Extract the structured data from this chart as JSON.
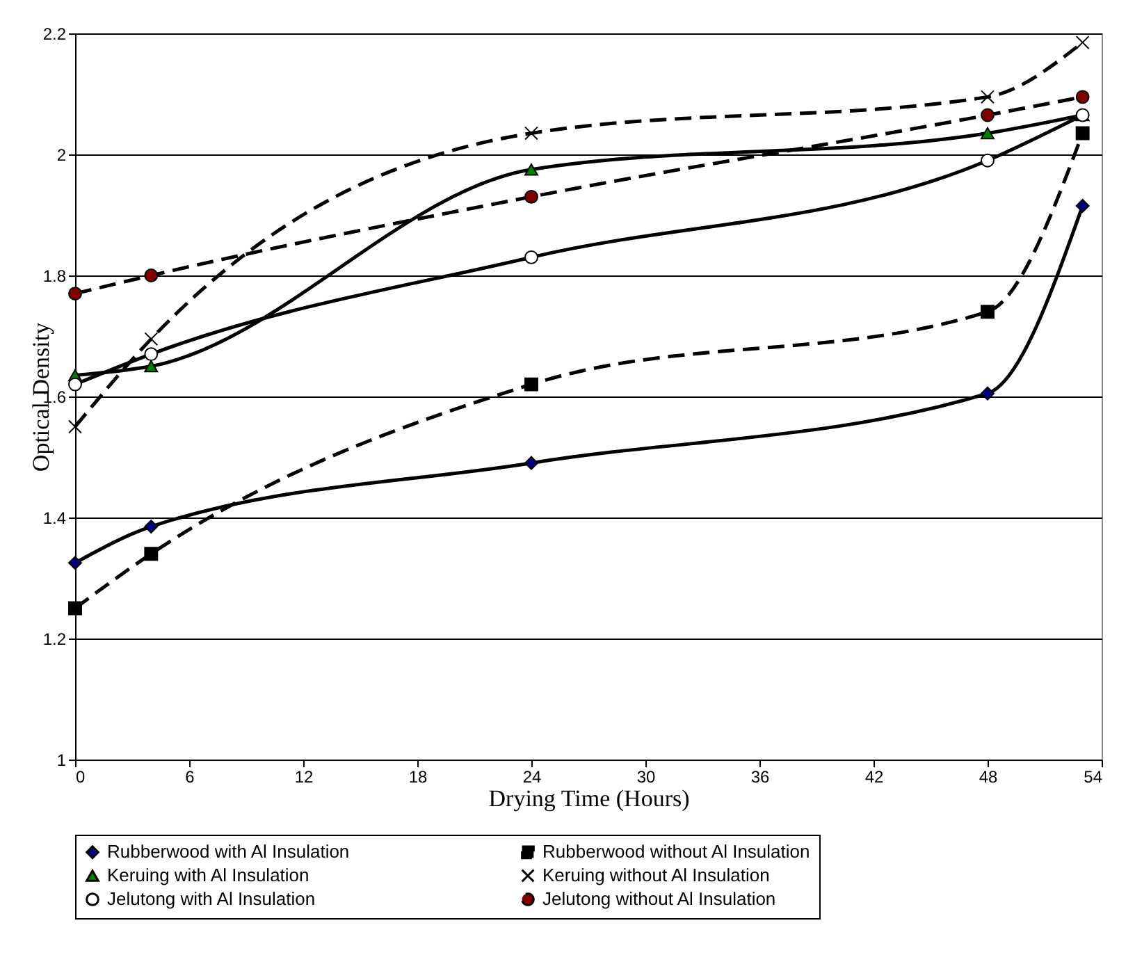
{
  "chart_data": {
    "type": "line",
    "xlabel": "Drying Time (Hours)",
    "ylabel": "Optical Density",
    "x": [
      0,
      4,
      24,
      48,
      53
    ],
    "series": [
      {
        "name": "Rubberwood with Al Insulation",
        "color": "#000080",
        "marker": "diamond",
        "line_style": "solid",
        "values": [
          1.325,
          1.385,
          1.49,
          1.605,
          1.915
        ]
      },
      {
        "name": "Rubberwood without Al Insulation",
        "color": "#000000",
        "marker": "square",
        "line_style": "dashed",
        "values": [
          1.25,
          1.34,
          1.62,
          1.74,
          2.035
        ]
      },
      {
        "name": "Keruing with Al Insulation",
        "color": "#008000",
        "marker": "triangle",
        "line_style": "solid",
        "values": [
          1.635,
          1.65,
          1.975,
          2.035,
          2.065
        ]
      },
      {
        "name": "Keruing without Al Insulation",
        "color": "#000000",
        "marker": "cross",
        "line_style": "dashed",
        "values": [
          1.55,
          1.695,
          2.035,
          2.095,
          2.185
        ]
      },
      {
        "name": "Jelutong with Al Insulation",
        "color": "#ffffff",
        "marker": "circle",
        "line_style": "solid",
        "values": [
          1.62,
          1.67,
          1.83,
          1.99,
          2.065
        ]
      },
      {
        "name": "Jelutong without Al Insulation",
        "color": "#800000",
        "marker": "circle",
        "line_style": "dashed",
        "values": [
          1.77,
          1.8,
          1.93,
          2.065,
          2.095
        ]
      }
    ],
    "xlim": [
      0,
      54
    ],
    "xticks": [
      0,
      6,
      12,
      18,
      24,
      30,
      36,
      42,
      48,
      54
    ],
    "ylim": [
      1,
      2.2
    ],
    "yticks": [
      1,
      1.2,
      1.4,
      1.6,
      1.8,
      2,
      2.2
    ],
    "grid": "y",
    "legend": "bottom"
  }
}
